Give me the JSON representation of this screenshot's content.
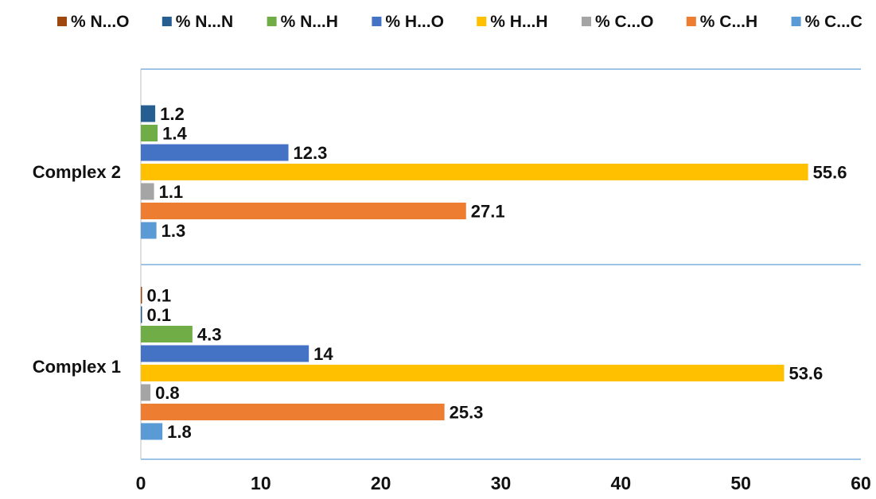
{
  "chart_data": {
    "type": "bar",
    "orientation": "horizontal",
    "title": "",
    "xlabel": "",
    "ylabel": "",
    "categories": [
      "Complex 1",
      "Complex 2"
    ],
    "xlim": [
      0,
      60
    ],
    "x_ticks": [
      "0",
      "10",
      "20",
      "30",
      "40",
      "50",
      "60"
    ],
    "grid": "horizontal-category-separators",
    "legend_position": "top",
    "series": [
      {
        "name": "% N...O",
        "color": "#9E480E",
        "values": [
          0.1,
          null
        ],
        "labels": [
          "0.1",
          ""
        ]
      },
      {
        "name": "% N...N",
        "color": "#255E91",
        "values": [
          0.1,
          1.2
        ],
        "labels": [
          "0.1",
          "1.2"
        ]
      },
      {
        "name": "% N...H",
        "color": "#70AD47",
        "values": [
          4.3,
          1.4
        ],
        "labels": [
          "4.3",
          "1.4"
        ]
      },
      {
        "name": "% H...O",
        "color": "#4472C4",
        "values": [
          14,
          12.3
        ],
        "labels": [
          "14",
          "12.3"
        ]
      },
      {
        "name": "% H...H",
        "color": "#FFC000",
        "values": [
          53.6,
          55.6
        ],
        "labels": [
          "53.6",
          "55.6"
        ]
      },
      {
        "name": "% C...O",
        "color": "#A5A5A5",
        "values": [
          0.8,
          1.1
        ],
        "labels": [
          "0.8",
          "1.1"
        ]
      },
      {
        "name": "% C...H",
        "color": "#ED7D31",
        "values": [
          25.3,
          27.1
        ],
        "labels": [
          "25.3",
          "27.1"
        ]
      },
      {
        "name": "% C...C",
        "color": "#5B9BD5",
        "values": [
          1.8,
          1.3
        ],
        "labels": [
          "1.8",
          "1.3"
        ]
      }
    ]
  }
}
